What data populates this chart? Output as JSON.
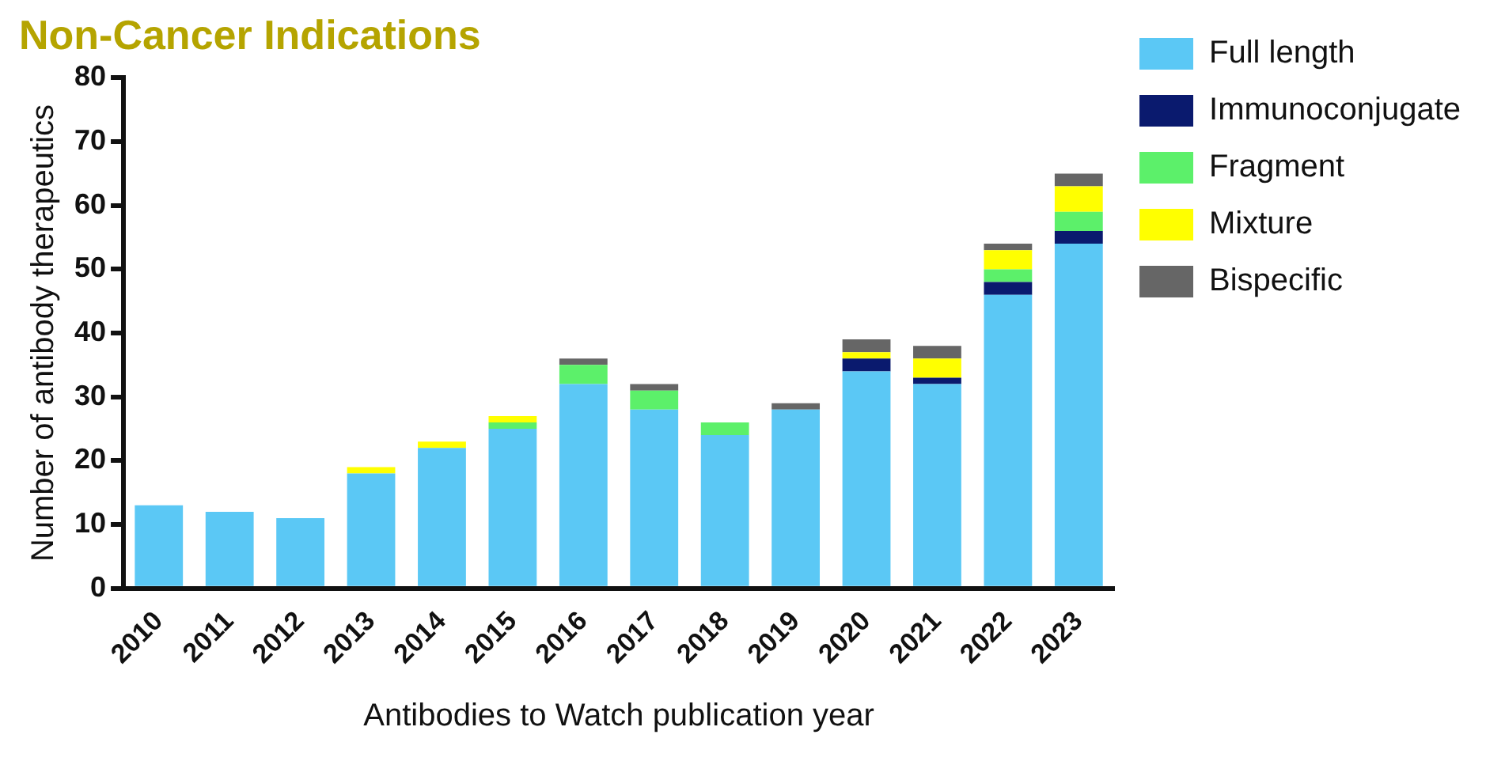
{
  "chart_data": {
    "type": "bar",
    "title": "Non-Cancer Indications",
    "xlabel": "Antibodies to Watch publication year",
    "ylabel": "Number of antibody therapeutics",
    "categories": [
      "2010",
      "2011",
      "2012",
      "2013",
      "2014",
      "2015",
      "2016",
      "2017",
      "2018",
      "2019",
      "2020",
      "2021",
      "2022",
      "2023"
    ],
    "series": [
      {
        "name": "Full length",
        "color": "#5bc8f5",
        "values": [
          13,
          12,
          11,
          18,
          22,
          25,
          32,
          28,
          24,
          28,
          34,
          32,
          46,
          54
        ]
      },
      {
        "name": "Immunoconjugate",
        "color": "#0a1a6e",
        "values": [
          0,
          0,
          0,
          0,
          0,
          0,
          0,
          0,
          0,
          0,
          2,
          1,
          2,
          2
        ]
      },
      {
        "name": "Fragment",
        "color": "#5cf06a",
        "values": [
          0,
          0,
          0,
          0,
          0,
          1,
          3,
          3,
          2,
          0,
          0,
          0,
          2,
          3
        ]
      },
      {
        "name": "Mixture",
        "color": "#ffff00",
        "values": [
          0,
          0,
          0,
          1,
          1,
          1,
          0,
          0,
          0,
          0,
          1,
          3,
          3,
          4
        ]
      },
      {
        "name": "Bispecific",
        "color": "#666666",
        "values": [
          0,
          0,
          0,
          0,
          0,
          0,
          1,
          1,
          0,
          1,
          2,
          2,
          1,
          2
        ]
      }
    ],
    "stacked": true,
    "ylim": [
      0,
      80
    ],
    "yticks": [
      0,
      10,
      20,
      30,
      40,
      50,
      60,
      70,
      80
    ],
    "grid": false,
    "legend": "right"
  }
}
